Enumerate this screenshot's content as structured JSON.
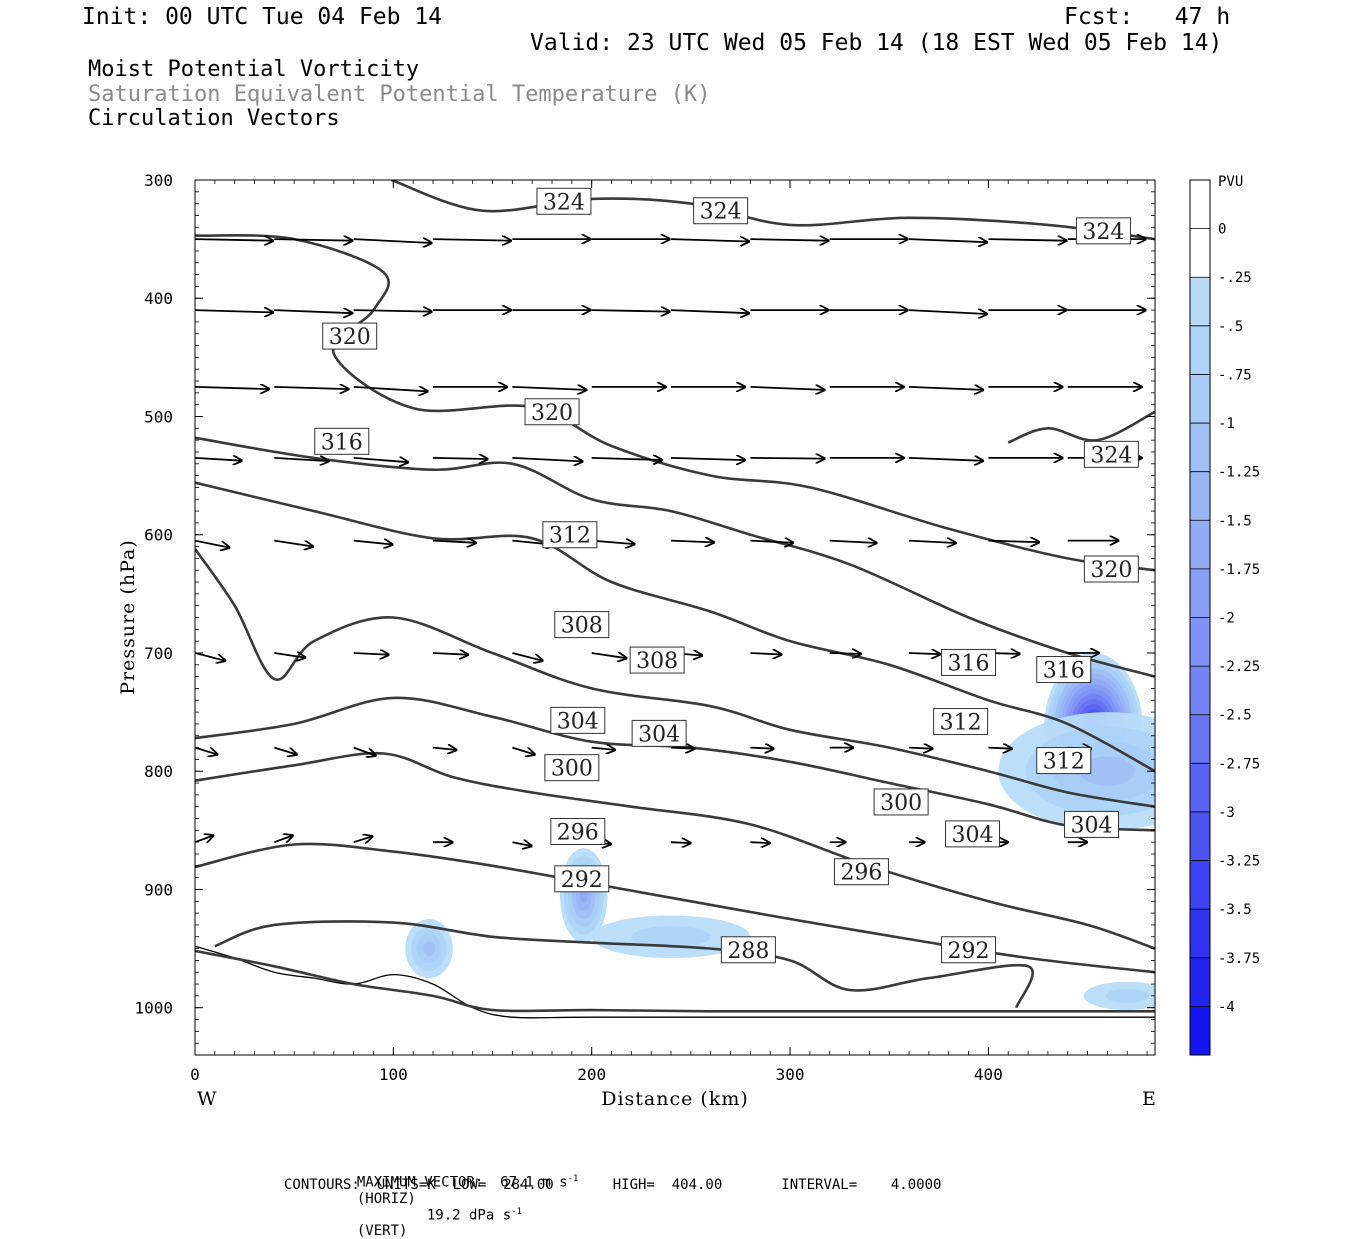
{
  "header": {
    "init": "Init: 00 UTC Tue 04 Feb 14",
    "fcst": "Fcst:   47 h",
    "valid": "Valid: 23 UTC Wed 05 Feb 14 (18 EST Wed 05 Feb 14)"
  },
  "legend_titles": {
    "line1": "Moist Potential Vorticity",
    "line2": "Saturation Equivalent Potential Temperature (K)",
    "line3": "Circulation Vectors"
  },
  "footer": {
    "max_vector": "MAXIMUM VECTOR:  67.1 m s",
    "max_vector_horiz": "(HORIZ)",
    "max_vector_vert_val": "19.2 dPa s",
    "max_vector_vert": "(VERT)",
    "sup": "-1",
    "contours": "CONTOURS:  UNITS=K  LOW=  284.00       HIGH=  404.00       INTERVAL=    4.0000"
  },
  "colors": {
    "contour": "#3a3a3a",
    "pv_light": "#b8dcf8",
    "pv_mid": "#8fa4f4",
    "pv_dark": "#1a1af0"
  },
  "chart_data": {
    "type": "cross-section",
    "xlabel": "Distance (km)",
    "ylabel": "Pressure (hPa)",
    "x_ticks": [
      "0",
      "100",
      "200",
      "300",
      "400"
    ],
    "x_tick_values": [
      0,
      100,
      200,
      300,
      400
    ],
    "y_ticks": [
      "300",
      "400",
      "500",
      "600",
      "700",
      "800",
      "900",
      "1000"
    ],
    "y_tick_values": [
      300,
      400,
      500,
      600,
      700,
      800,
      900,
      1000
    ],
    "xlim": [
      0,
      484
    ],
    "ylim": [
      1040,
      300
    ],
    "x_end_labels": {
      "left": "W",
      "right": "E"
    },
    "colorbar": {
      "title": "PVU",
      "labels": [
        "0",
        "-.25",
        "-.5",
        "-.75",
        "-1",
        "-1.25",
        "-1.5",
        "-1.75",
        "-2",
        "-2.25",
        "-2.5",
        "-2.75",
        "-3",
        "-3.25",
        "-3.5",
        "-3.75",
        "-4"
      ],
      "colors": [
        "#ffffff",
        "#ffffff",
        "#b8dcf8",
        "#add4f8",
        "#a8ccf7",
        "#a0c0f6",
        "#98b6f6",
        "#90aaf5",
        "#889ef4",
        "#7f91f4",
        "#7482f3",
        "#6873f2",
        "#5b64f2",
        "#4d53f1",
        "#3f42f1",
        "#3131f0",
        "#2323f0",
        "#1515ef"
      ]
    },
    "contours": [
      {
        "label": "324",
        "label_positions": [
          [
            186,
            318
          ],
          [
            265,
            326
          ],
          [
            458,
            343
          ]
        ],
        "points": [
          [
            99,
            300
          ],
          [
            145,
            326
          ],
          [
            200,
            316
          ],
          [
            250,
            320
          ],
          [
            300,
            338
          ],
          [
            360,
            332
          ],
          [
            430,
            338
          ],
          [
            484,
            350
          ]
        ]
      },
      {
        "label": "324",
        "label_positions": [
          [
            462,
            532
          ]
        ],
        "points": [
          [
            410,
            522
          ],
          [
            430,
            510
          ],
          [
            455,
            520
          ],
          [
            484,
            496
          ]
        ]
      },
      {
        "label": "320",
        "label_positions": [
          [
            78,
            432
          ],
          [
            180,
            496
          ],
          [
            462,
            629
          ]
        ],
        "points": [
          [
            0,
            347
          ],
          [
            50,
            350
          ],
          [
            95,
            378
          ],
          [
            90,
            410
          ],
          [
            70,
            447
          ],
          [
            110,
            493
          ],
          [
            170,
            492
          ],
          [
            210,
            525
          ],
          [
            260,
            550
          ],
          [
            310,
            560
          ],
          [
            380,
            595
          ],
          [
            440,
            620
          ],
          [
            484,
            630
          ]
        ]
      },
      {
        "label": "316",
        "label_positions": [
          [
            74,
            521
          ],
          [
            390,
            708
          ],
          [
            438,
            714
          ]
        ],
        "points": [
          [
            0,
            518
          ],
          [
            60,
            535
          ],
          [
            120,
            545
          ],
          [
            160,
            540
          ],
          [
            200,
            570
          ],
          [
            240,
            580
          ],
          [
            280,
            600
          ],
          [
            330,
            625
          ],
          [
            390,
            670
          ],
          [
            440,
            700
          ],
          [
            484,
            720
          ]
        ]
      },
      {
        "label": "312",
        "label_positions": [
          [
            189,
            600
          ],
          [
            386,
            758
          ],
          [
            438,
            791
          ]
        ],
        "points": [
          [
            0,
            556
          ],
          [
            60,
            580
          ],
          [
            120,
            603
          ],
          [
            170,
            603
          ],
          [
            210,
            640
          ],
          [
            260,
            665
          ],
          [
            300,
            690
          ],
          [
            350,
            710
          ],
          [
            400,
            740
          ],
          [
            440,
            760
          ],
          [
            484,
            800
          ]
        ]
      },
      {
        "label": "308",
        "label_positions": [
          [
            195,
            676
          ],
          [
            233,
            706
          ]
        ],
        "points": [
          [
            0,
            612
          ],
          [
            20,
            660
          ],
          [
            40,
            722
          ],
          [
            60,
            690
          ],
          [
            100,
            670
          ],
          [
            150,
            700
          ],
          [
            200,
            730
          ],
          [
            260,
            745
          ],
          [
            300,
            765
          ],
          [
            350,
            780
          ],
          [
            400,
            800
          ],
          [
            440,
            818
          ],
          [
            484,
            830
          ]
        ]
      },
      {
        "label": "304",
        "label_positions": [
          [
            193,
            757
          ],
          [
            234,
            768
          ],
          [
            392,
            853
          ],
          [
            452,
            845
          ]
        ],
        "points": [
          [
            0,
            772
          ],
          [
            50,
            760
          ],
          [
            100,
            738
          ],
          [
            150,
            754
          ],
          [
            200,
            775
          ],
          [
            250,
            780
          ],
          [
            300,
            792
          ],
          [
            350,
            810
          ],
          [
            400,
            828
          ],
          [
            440,
            846
          ],
          [
            484,
            850
          ]
        ]
      },
      {
        "label": "300",
        "label_positions": [
          [
            190,
            797
          ],
          [
            356,
            826
          ]
        ],
        "points": [
          [
            0,
            808
          ],
          [
            50,
            795
          ],
          [
            95,
            785
          ],
          [
            130,
            805
          ],
          [
            170,
            818
          ],
          [
            220,
            830
          ],
          [
            280,
            845
          ],
          [
            340,
            880
          ],
          [
            400,
            910
          ],
          [
            450,
            930
          ],
          [
            484,
            950
          ]
        ]
      },
      {
        "label": "296",
        "label_positions": [
          [
            193,
            851
          ],
          [
            336,
            885
          ]
        ],
        "points": [
          [
            0,
            881
          ],
          [
            50,
            862
          ],
          [
            100,
            868
          ],
          [
            150,
            880
          ],
          [
            200,
            895
          ],
          [
            250,
            910
          ],
          [
            300,
            925
          ],
          [
            360,
            942
          ],
          [
            420,
            958
          ],
          [
            484,
            970
          ]
        ]
      },
      {
        "label": "292",
        "label_positions": [
          [
            195,
            891
          ],
          [
            390,
            951
          ]
        ],
        "points": [
          [
            10,
            948
          ],
          [
            40,
            930
          ],
          [
            100,
            928
          ],
          [
            150,
            940
          ],
          [
            200,
            945
          ],
          [
            260,
            950
          ],
          [
            300,
            960
          ],
          [
            330,
            985
          ],
          [
            370,
            975
          ],
          [
            420,
            965
          ],
          [
            414,
            1000
          ]
        ]
      },
      {
        "label": "288",
        "label_positions": [
          [
            279,
            951
          ]
        ],
        "points": [
          [
            0,
            952
          ],
          [
            40,
            965
          ],
          [
            80,
            980
          ],
          [
            120,
            990
          ],
          [
            150,
            1002
          ],
          [
            200,
            1002
          ],
          [
            260,
            1003
          ],
          [
            350,
            1003
          ],
          [
            484,
            1003
          ]
        ]
      }
    ],
    "pv_regions": [
      {
        "level": -3.75,
        "center": [
          453,
          765
        ],
        "rx_km": 25,
        "ry_hpa": 65
      },
      {
        "level": -1.0,
        "center": [
          460,
          800
        ],
        "rx_km": 55,
        "ry_hpa": 50
      },
      {
        "level": -1.5,
        "center": [
          196,
          905
        ],
        "rx_km": 12,
        "ry_hpa": 40
      },
      {
        "level": -1.0,
        "center": [
          118,
          950
        ],
        "rx_km": 12,
        "ry_hpa": 25
      },
      {
        "level": -0.5,
        "center": [
          240,
          940
        ],
        "rx_km": 40,
        "ry_hpa": 18
      },
      {
        "level": -0.5,
        "center": [
          470,
          990
        ],
        "rx_km": 22,
        "ry_hpa": 12
      }
    ],
    "vectors": {
      "levels_hpa": [
        350,
        410,
        475,
        535,
        605,
        700,
        780,
        860
      ],
      "x_km": [
        0,
        40,
        80,
        120,
        160,
        200,
        240,
        280,
        320,
        360,
        400,
        440
      ],
      "magnitude": [
        [
          1.0,
          1.0,
          1.0,
          1.0,
          1.0,
          1.0,
          1.0,
          1.0,
          1.0,
          1.0,
          1.0,
          1.0
        ],
        [
          1.0,
          1.0,
          1.0,
          1.0,
          1.0,
          1.0,
          1.0,
          1.0,
          1.0,
          1.0,
          1.0,
          1.0
        ],
        [
          0.95,
          0.95,
          0.95,
          0.95,
          0.95,
          0.95,
          0.95,
          0.95,
          0.95,
          0.95,
          0.95,
          0.95
        ],
        [
          0.6,
          0.7,
          0.7,
          0.7,
          0.9,
          0.9,
          0.95,
          0.95,
          0.95,
          0.95,
          0.95,
          0.95
        ],
        [
          0.45,
          0.5,
          0.5,
          0.55,
          0.55,
          0.55,
          0.55,
          0.55,
          0.6,
          0.6,
          0.65,
          0.65
        ],
        [
          0.4,
          0.4,
          0.45,
          0.45,
          0.4,
          0.45,
          0.4,
          0.4,
          0.4,
          0.4,
          0.4,
          0.4
        ],
        [
          0.3,
          0.3,
          0.3,
          0.3,
          0.3,
          0.3,
          0.3,
          0.3,
          0.3,
          0.3,
          0.3,
          0.3
        ],
        [
          0.25,
          0.25,
          0.25,
          0.25,
          0.25,
          0.25,
          0.25,
          0.25,
          0.2,
          0.2,
          0.25,
          0.25
        ]
      ],
      "tilt": [
        [
          0.02,
          0.02,
          0.05,
          0.02,
          0.0,
          0.0,
          0.03,
          0.02,
          0.0,
          0.04,
          0.02,
          0.0
        ],
        [
          0.03,
          0.04,
          0.02,
          0.0,
          0.0,
          0.02,
          0.04,
          0.0,
          0.0,
          0.05,
          0.0,
          0.0
        ],
        [
          0.03,
          0.03,
          0.06,
          0.0,
          0.04,
          0.0,
          0.0,
          0.04,
          0.0,
          0.04,
          0.0,
          0.0
        ],
        [
          0.06,
          0.06,
          0.08,
          0.02,
          0.05,
          0.03,
          0.03,
          0.01,
          0.0,
          0.04,
          0.0,
          0.0
        ],
        [
          0.2,
          0.15,
          0.1,
          0.05,
          0.1,
          0.08,
          0.04,
          0.05,
          0.05,
          0.05,
          0.03,
          0.0
        ],
        [
          0.25,
          0.15,
          0.05,
          0.05,
          0.25,
          0.15,
          0.08,
          0.05,
          0.03,
          0.04,
          0.03,
          0.0
        ],
        [
          0.3,
          0.3,
          0.35,
          0.1,
          0.3,
          0.1,
          0.05,
          0.05,
          0.0,
          0.05,
          0.05,
          0.05
        ],
        [
          -0.35,
          -0.35,
          -0.3,
          0.0,
          0.2,
          0.1,
          0.05,
          0.05,
          0.0,
          0.0,
          0.0,
          0.0
        ]
      ]
    },
    "terrain_hpa": [
      [
        0,
        948
      ],
      [
        20,
        958
      ],
      [
        40,
        970
      ],
      [
        60,
        975
      ],
      [
        80,
        980
      ],
      [
        100,
        972
      ],
      [
        120,
        980
      ],
      [
        140,
        1000
      ],
      [
        160,
        1008
      ],
      [
        200,
        1008
      ],
      [
        300,
        1008
      ],
      [
        400,
        1008
      ],
      [
        484,
        1008
      ]
    ]
  }
}
